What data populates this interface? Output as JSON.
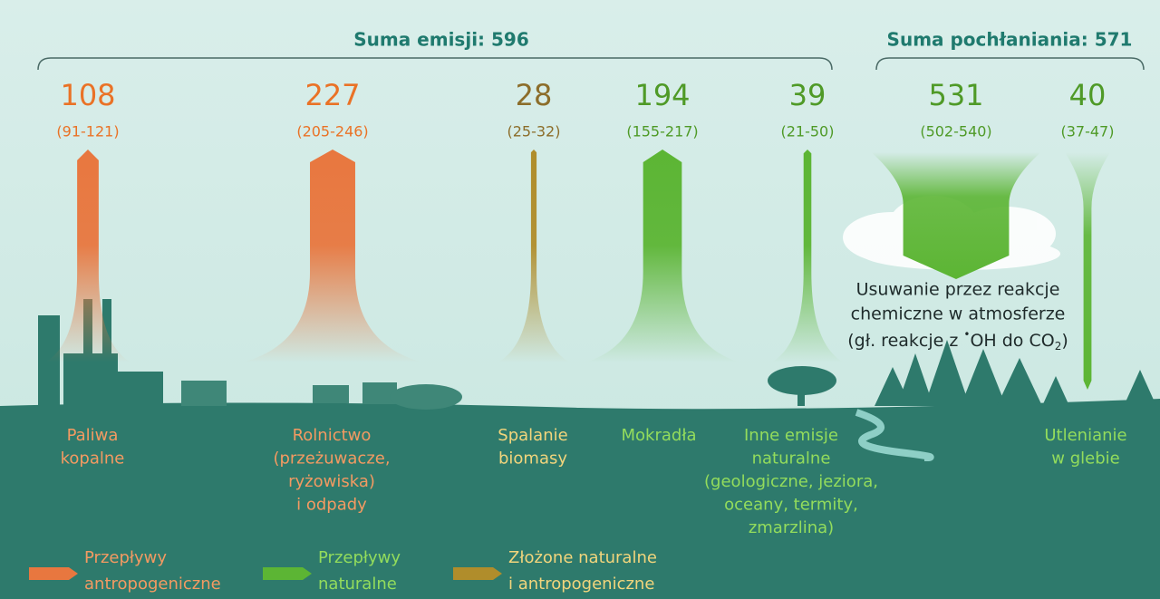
{
  "emissions": {
    "total_label": "Suma emisji: 596",
    "flows": [
      {
        "value": 108,
        "range": "(91-121)",
        "label": [
          "Paliwa",
          "kopalne"
        ],
        "color": "#e8773f",
        "value_color": "#ea7226",
        "label_color": "#f39a62"
      },
      {
        "value": 227,
        "range": "(205-246)",
        "label": [
          "Rolnictwo",
          "(przeżuwacze,",
          "ryżowiska)",
          "i odpady"
        ],
        "color": "#e8773f",
        "value_color": "#ea7226",
        "label_color": "#f39a62"
      },
      {
        "value": 28,
        "range": "(25-32)",
        "label": [
          "Spalanie",
          "biomasy"
        ],
        "color": "#b08d2b",
        "value_color": "#8c6d2a",
        "label_color": "#f2d57c"
      },
      {
        "value": 194,
        "range": "(155-217)",
        "label": [
          "Mokradła"
        ],
        "color": "#5cb534",
        "value_color": "#4f9a27",
        "label_color": "#93dc5c"
      },
      {
        "value": 39,
        "range": "(21-50)",
        "label": [
          "Inne emisje",
          "naturalne",
          "(geologiczne, jeziora,",
          "oceany, termity,",
          "zmarzlina)"
        ],
        "color": "#5cb534",
        "value_color": "#4f9a27",
        "label_color": "#93dc5c"
      }
    ]
  },
  "sinks": {
    "total_label": "Suma pochłaniania: 571",
    "flows": [
      {
        "value": 531,
        "range": "(502-540)",
        "label": [],
        "color": "#5cb534",
        "value_color": "#4f9a27",
        "label_color": "#93dc5c"
      },
      {
        "value": 40,
        "range": "(37-47)",
        "label": [
          "Utlenianie",
          "w glebie"
        ],
        "color": "#5cb534",
        "value_color": "#4f9a27",
        "label_color": "#93dc5c"
      }
    ]
  },
  "annotation": {
    "lines": [
      "Usuwanie przez reakcje",
      "chemiczne w atmosferze"
    ],
    "last_line": {
      "before": "(gł. reakcje z ",
      "radical": "•",
      "after": "OH do CO",
      "subscript": "2",
      "end": ")"
    }
  },
  "legend": [
    {
      "label": [
        "Przepływy",
        "antropogeniczne"
      ],
      "color": "#e8773f",
      "text_color": "#f39a62"
    },
    {
      "label": [
        "Przepływy",
        "naturalne"
      ],
      "color": "#5cb534",
      "text_color": "#93dc5c"
    },
    {
      "label": [
        "Złożone naturalne",
        "i antropogeniczne"
      ],
      "color": "#b08d2b",
      "text_color": "#f2d57c"
    }
  ]
}
